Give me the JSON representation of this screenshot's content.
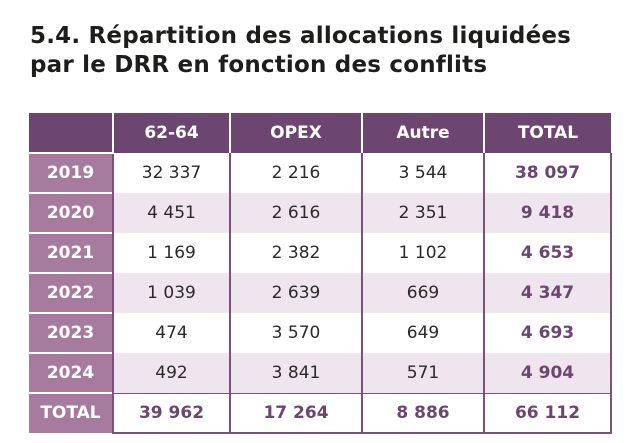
{
  "title": {
    "line1": "5.4. Répartition des allocations liquidées",
    "line2": "par le DRR en fonction des conflits"
  },
  "table": {
    "headers": [
      "",
      "62-64",
      "OPEX",
      "Autre",
      "TOTAL"
    ],
    "rows": [
      {
        "year": "2019",
        "values": [
          "32 337",
          "2 216",
          "3 544",
          "38 097"
        ]
      },
      {
        "year": "2020",
        "values": [
          "4 451",
          "2 616",
          "2 351",
          "9 418"
        ]
      },
      {
        "year": "2021",
        "values": [
          "1 169",
          "2 382",
          "1 102",
          "4 653"
        ]
      },
      {
        "year": "2022",
        "values": [
          "1 039",
          "2 639",
          "669",
          "4 347"
        ]
      },
      {
        "year": "2023",
        "values": [
          "474",
          "3 570",
          "649",
          "4 693"
        ]
      },
      {
        "year": "2024",
        "values": [
          "492",
          "3 841",
          "571",
          "4 904"
        ]
      },
      {
        "year": "TOTAL",
        "values": [
          "39 962",
          "17 264",
          "8 886",
          "66 112"
        ]
      }
    ]
  },
  "colors": {
    "header": "#6c4670",
    "row_header": "#a67b9e",
    "alt_row": "#efe5ee",
    "total_text": "#6c4670"
  }
}
